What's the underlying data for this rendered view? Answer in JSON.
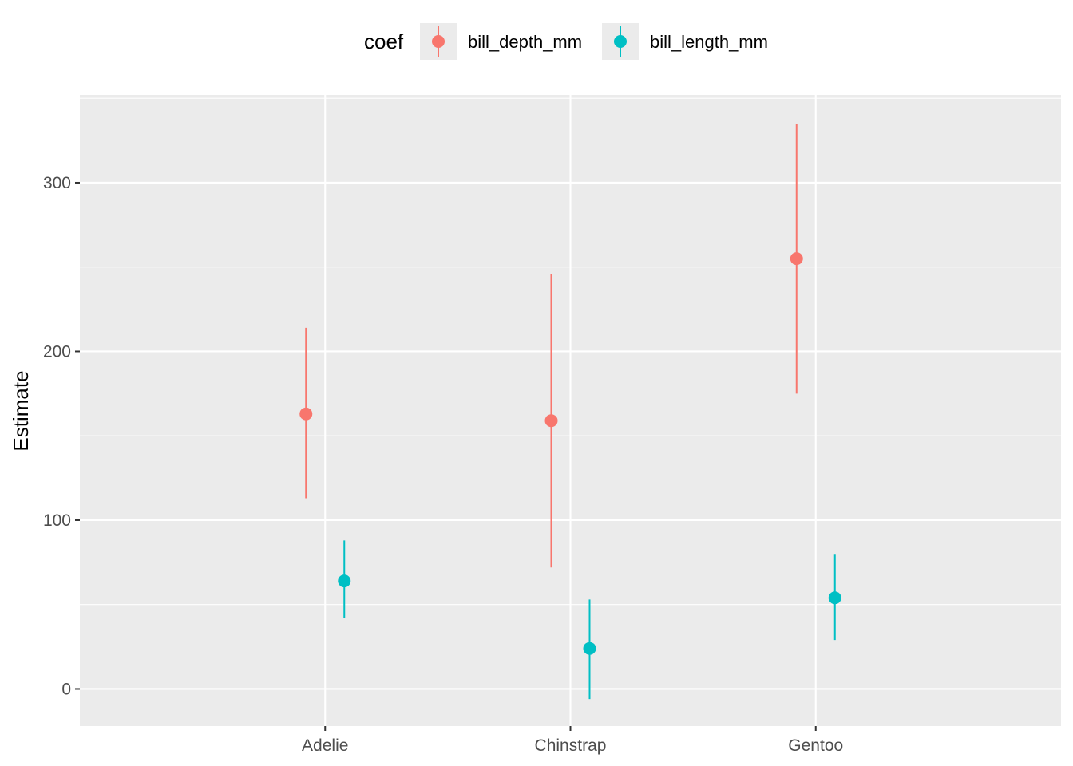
{
  "chart_data": {
    "type": "scatter",
    "subtype": "pointrange",
    "title": "",
    "xlabel": "",
    "ylabel": "Estimate",
    "categories": [
      "Adelie",
      "Chinstrap",
      "Gentoo"
    ],
    "ylim": [
      -22,
      352
    ],
    "yticks": [
      0,
      100,
      200,
      300
    ],
    "grid": true,
    "legend": {
      "title": "coef",
      "position": "top"
    },
    "series": [
      {
        "name": "bill_depth_mm",
        "color": "#F8766D",
        "points": [
          {
            "x": "Adelie",
            "y": 163,
            "ymin": 113,
            "ymax": 214
          },
          {
            "x": "Chinstrap",
            "y": 159,
            "ymin": 72,
            "ymax": 246
          },
          {
            "x": "Gentoo",
            "y": 255,
            "ymin": 175,
            "ymax": 335
          }
        ]
      },
      {
        "name": "bill_length_mm",
        "color": "#00BFC4",
        "points": [
          {
            "x": "Adelie",
            "y": 64,
            "ymin": 42,
            "ymax": 88
          },
          {
            "x": "Chinstrap",
            "y": 24,
            "ymin": -6,
            "ymax": 53
          },
          {
            "x": "Gentoo",
            "y": 54,
            "ymin": 29,
            "ymax": 80
          }
        ]
      }
    ]
  }
}
